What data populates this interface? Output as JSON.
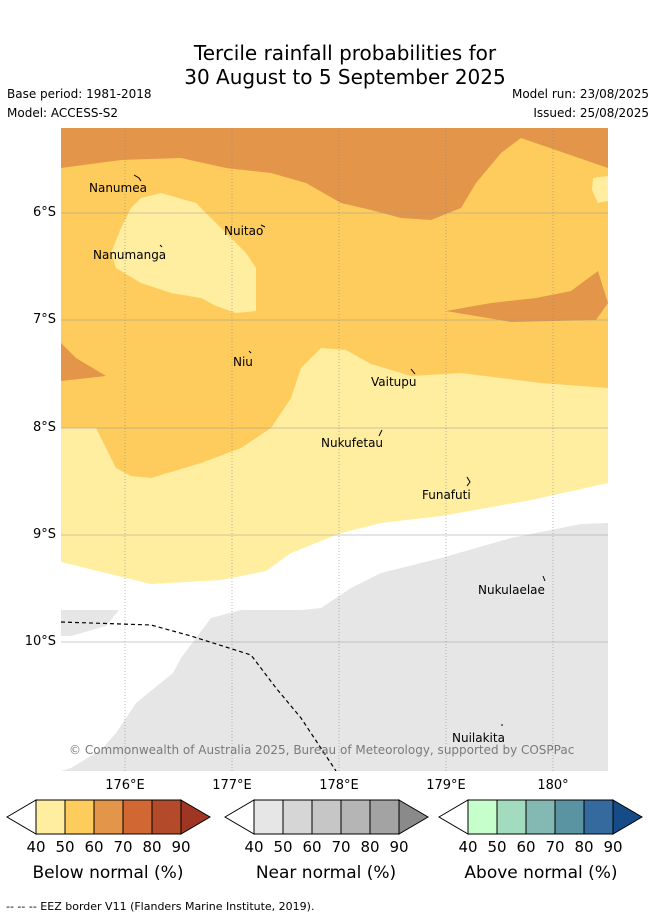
{
  "title_line1": "Tercile rainfall probabilities for",
  "title_line2": "30 August to 5 September 2025",
  "base_period": "Base period: 1981-2018",
  "model": "Model: ACCESS-S2",
  "model_run": "Model run: 23/08/2025",
  "issued": "Issued: 25/08/2025",
  "credit": "© Commonwealth of Australia 2025, Bureau of Meteorology, supported by COSPPac",
  "lat_ticks": [
    "6°S",
    "7°S",
    "8°S",
    "9°S",
    "10°S"
  ],
  "lon_ticks": [
    "176°E",
    "177°E",
    "178°E",
    "179°E",
    "180°"
  ],
  "islands": [
    "Nanumea",
    "Nuitao",
    "Nanumanga",
    "Niu",
    "Vaitupu",
    "Nukufetau",
    "Funafuti",
    "Nukulaelae",
    "Nuilakita"
  ],
  "colorbars": [
    {
      "title": "Below normal (%)",
      "ticks": [
        "40",
        "50",
        "60",
        "70",
        "80",
        "90"
      ],
      "colors": [
        "#ffeda0",
        "#fecc5c",
        "#e3964a",
        "#d16834",
        "#b34b2b",
        "#9e3623"
      ]
    },
    {
      "title": "Near normal (%)",
      "ticks": [
        "40",
        "50",
        "60",
        "70",
        "80",
        "90"
      ],
      "colors": [
        "#e6e6e6",
        "#d6d6d6",
        "#c6c6c6",
        "#b5b5b5",
        "#a3a3a3",
        "#8a8a8a"
      ]
    },
    {
      "title": "Above normal (%)",
      "ticks": [
        "40",
        "50",
        "60",
        "70",
        "80",
        "90"
      ],
      "colors": [
        "#c7ffcc",
        "#a3dbbf",
        "#84b8b2",
        "#5a94a2",
        "#346a9e",
        "#154c87"
      ]
    }
  ],
  "footer": "-- -- -- EEZ border V11 (Flanders Marine Institute, 2019).",
  "colors": {
    "below_40": "#ffeda0",
    "below_50": "#fecc5c",
    "below_60": "#e3964a",
    "near_40": "#e6e6e6"
  }
}
